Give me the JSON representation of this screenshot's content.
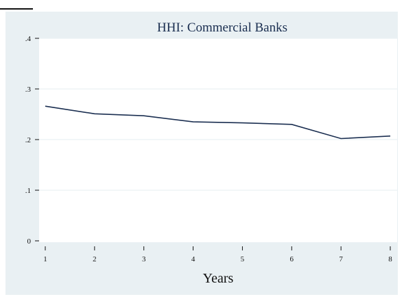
{
  "chart_data": {
    "type": "line",
    "title": "HHI: Commercial Banks",
    "xlabel": "Years",
    "ylabel": "",
    "x": [
      1,
      2,
      3,
      4,
      5,
      6,
      7,
      8
    ],
    "series": [
      {
        "values": [
          0.266,
          0.251,
          0.247,
          0.235,
          0.233,
          0.23,
          0.202,
          0.207
        ]
      }
    ],
    "xlim": [
      1,
      8
    ],
    "ylim": [
      0,
      0.4
    ],
    "yticks": [
      0,
      0.1,
      0.2,
      0.3,
      0.4
    ],
    "ytick_labels": [
      "0",
      ".1",
      ".2",
      ".3",
      ".4"
    ],
    "xticks": [
      1,
      2,
      3,
      4,
      5,
      6,
      7,
      8
    ],
    "xtick_labels": [
      "1",
      "2",
      "3",
      "4",
      "5",
      "6",
      "7",
      "8"
    ],
    "grid": true,
    "colors": {
      "background": "#e9f0f3",
      "plot": "#ffffff",
      "line": "#1a2e50",
      "grid": "#e9f0f3",
      "text": "#111111"
    }
  }
}
